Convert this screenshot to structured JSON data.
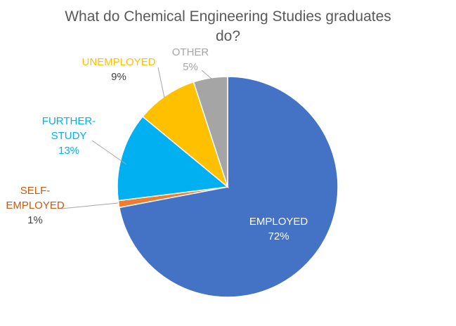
{
  "chart_data": {
    "type": "pie",
    "title_lines": [
      "What do Chemical Engineering Studies graduates",
      "do?"
    ],
    "title": "What do Chemical Engineering Studies graduates do?",
    "slices": [
      {
        "label": "EMPLOYED",
        "label_lines": [
          "EMPLOYED"
        ],
        "value": 72,
        "value_text": "72%",
        "color": "#4472C4",
        "label_color": "#FFFFFF",
        "value_color": "#FFFFFF"
      },
      {
        "label": "SELF-EMPLOYED",
        "label_lines": [
          "SELF-",
          "EMPLOYED"
        ],
        "value": 1,
        "value_text": "1%",
        "color": "#ED7D31",
        "label_color": "#C55A11",
        "value_color": "#404040"
      },
      {
        "label": "FURTHER-STUDY",
        "label_lines": [
          "FURTHER-",
          "STUDY"
        ],
        "value": 13,
        "value_text": "13%",
        "color": "#00B0F0",
        "label_color": "#00B0F0",
        "value_color": "#00B0F0"
      },
      {
        "label": "UNEMPLOYED",
        "label_lines": [
          "UNEMPLOYED"
        ],
        "value": 9,
        "value_text": "9%",
        "color": "#FFC000",
        "label_color": "#FFC000",
        "value_color": "#404040"
      },
      {
        "label": "OTHER",
        "label_lines": [
          "OTHER"
        ],
        "value": 5,
        "value_text": "5%",
        "color": "#A5A5A5",
        "label_color": "#A5A5A5",
        "value_color": "#A5A5A5"
      }
    ],
    "start": "12 o'clock",
    "direction": "clockwise",
    "legend": "none",
    "leader_line_color": "#A6A6A6"
  }
}
